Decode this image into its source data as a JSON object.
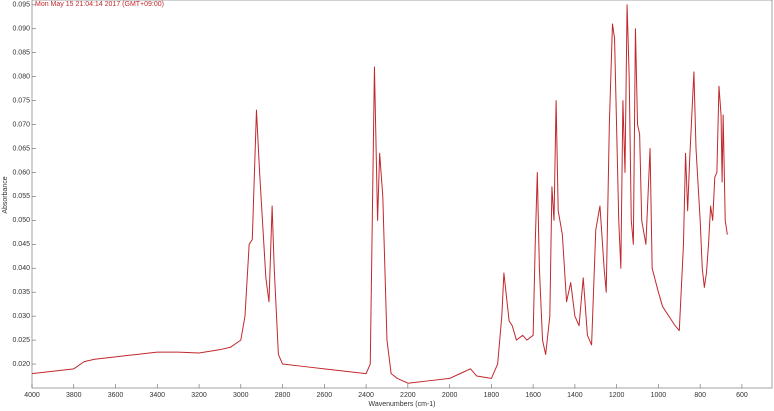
{
  "chart_data": {
    "type": "line",
    "title": "Mon May 15 21:04:14 2017 (GMT+09:00)",
    "x_label": "Wavenumbers (cm-1)",
    "y_label": "Absorbance",
    "xlim": [
      4000,
      456
    ],
    "ylim": [
      0.015,
      0.096
    ],
    "x_reversed": true,
    "xticks": [
      4000,
      3800,
      3600,
      3400,
      3200,
      3000,
      2800,
      2600,
      2400,
      2200,
      2000,
      1800,
      1600,
      1400,
      1200,
      1000,
      800,
      600
    ],
    "yticks": [
      {
        "value": 0.02,
        "label": "0.020"
      },
      {
        "value": 0.025,
        "label": "0.025"
      },
      {
        "value": 0.03,
        "label": "0.030"
      },
      {
        "value": 0.035,
        "label": "0.035"
      },
      {
        "value": 0.04,
        "label": "0.040"
      },
      {
        "value": 0.045,
        "label": "0.045"
      },
      {
        "value": 0.05,
        "label": "0.050"
      },
      {
        "value": 0.055,
        "label": "0.055"
      },
      {
        "value": 0.06,
        "label": "0.060"
      },
      {
        "value": 0.065,
        "label": "0.065"
      },
      {
        "value": 0.07,
        "label": "0.070"
      },
      {
        "value": 0.075,
        "label": "0.075"
      },
      {
        "value": 0.08,
        "label": "0.080"
      },
      {
        "value": 0.085,
        "label": "0.085"
      },
      {
        "value": 0.09,
        "label": "0.090"
      },
      {
        "value": 0.095,
        "label": "0.095"
      }
    ],
    "series": [
      {
        "color": "#c0282d",
        "x": [
          4000,
          3900,
          3800,
          3750,
          3700,
          3600,
          3500,
          3400,
          3300,
          3200,
          3100,
          3050,
          3000,
          2980,
          2960,
          2945,
          2925,
          2910,
          2880,
          2865,
          2850,
          2840,
          2820,
          2800,
          2700,
          2600,
          2500,
          2400,
          2380,
          2360,
          2345,
          2335,
          2320,
          2300,
          2280,
          2250,
          2200,
          2100,
          2000,
          1950,
          1900,
          1870,
          1800,
          1770,
          1750,
          1740,
          1730,
          1715,
          1700,
          1680,
          1650,
          1630,
          1600,
          1590,
          1580,
          1570,
          1555,
          1540,
          1520,
          1510,
          1500,
          1490,
          1480,
          1460,
          1440,
          1420,
          1400,
          1380,
          1360,
          1340,
          1320,
          1300,
          1280,
          1260,
          1250,
          1235,
          1220,
          1210,
          1190,
          1180,
          1170,
          1160,
          1150,
          1140,
          1130,
          1120,
          1110,
          1100,
          1090,
          1080,
          1060,
          1040,
          1030,
          1000,
          980,
          950,
          920,
          900,
          880,
          870,
          860,
          850,
          830,
          820,
          800,
          790,
          780,
          770,
          760,
          750,
          740,
          730,
          720,
          710,
          700,
          695,
          690,
          680,
          670
        ],
        "values": [
          0.018,
          0.0185,
          0.019,
          0.0205,
          0.021,
          0.0215,
          0.022,
          0.0225,
          0.0225,
          0.0223,
          0.023,
          0.0235,
          0.025,
          0.03,
          0.045,
          0.046,
          0.073,
          0.06,
          0.038,
          0.033,
          0.053,
          0.04,
          0.022,
          0.02,
          0.0195,
          0.019,
          0.0185,
          0.018,
          0.02,
          0.082,
          0.05,
          0.064,
          0.055,
          0.025,
          0.018,
          0.017,
          0.016,
          0.0165,
          0.017,
          0.018,
          0.019,
          0.0175,
          0.017,
          0.02,
          0.03,
          0.039,
          0.035,
          0.029,
          0.028,
          0.025,
          0.026,
          0.025,
          0.026,
          0.045,
          0.06,
          0.04,
          0.025,
          0.022,
          0.03,
          0.057,
          0.05,
          0.075,
          0.052,
          0.047,
          0.033,
          0.037,
          0.03,
          0.028,
          0.038,
          0.026,
          0.024,
          0.048,
          0.053,
          0.04,
          0.035,
          0.07,
          0.091,
          0.088,
          0.05,
          0.04,
          0.075,
          0.06,
          0.095,
          0.08,
          0.05,
          0.045,
          0.09,
          0.07,
          0.068,
          0.05,
          0.045,
          0.065,
          0.04,
          0.035,
          0.032,
          0.03,
          0.028,
          0.027,
          0.045,
          0.064,
          0.052,
          0.063,
          0.081,
          0.065,
          0.05,
          0.04,
          0.036,
          0.039,
          0.045,
          0.053,
          0.05,
          0.059,
          0.06,
          0.078,
          0.072,
          0.058,
          0.072,
          0.05,
          0.047
        ]
      }
    ]
  }
}
